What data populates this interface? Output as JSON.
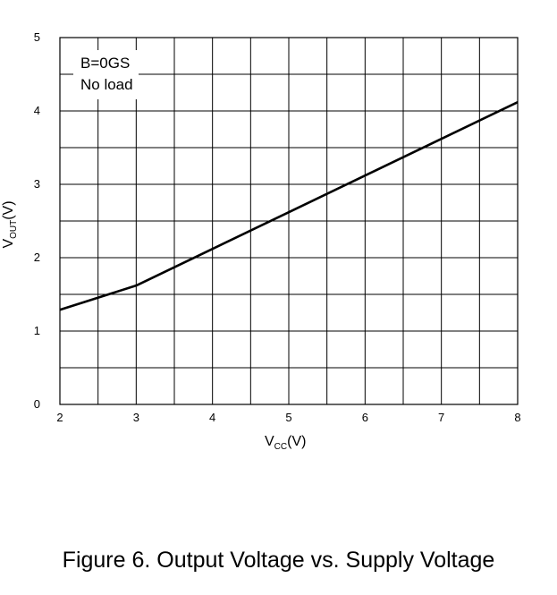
{
  "caption": "Figure 6. Output Voltage vs. Supply Voltage",
  "annotation": {
    "line1": "B=0GS",
    "line2": "No load"
  },
  "axes": {
    "x_main": "V",
    "x_sub": "CC",
    "x_unit": "(V)",
    "y_main": "V",
    "y_sub": "OUT",
    "y_unit": "(V)"
  },
  "chart_data": {
    "type": "line",
    "title": "",
    "xlabel": "VCC(V)",
    "ylabel": "VOUT(V)",
    "xlim": [
      2,
      8
    ],
    "ylim": [
      0,
      5
    ],
    "x_ticks": [
      2,
      3,
      4,
      5,
      6,
      7,
      8
    ],
    "y_ticks": [
      0,
      1,
      2,
      3,
      4,
      5
    ],
    "grid": true,
    "legend_placement": "top-left",
    "series": [
      {
        "x": [
          2,
          3,
          4,
          5,
          6,
          7,
          8
        ],
        "y": [
          1.29,
          1.62,
          2.12,
          2.62,
          3.12,
          3.62,
          4.12
        ],
        "color": "#000000"
      }
    ]
  }
}
